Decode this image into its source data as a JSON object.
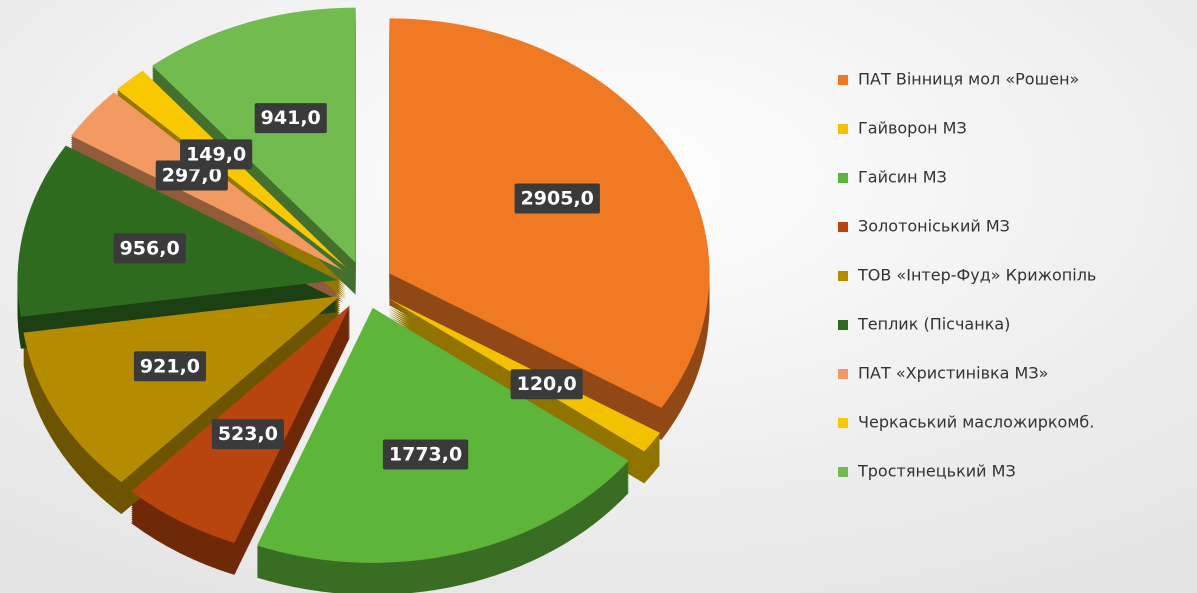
{
  "chart_data": {
    "type": "pie",
    "categories": [
      "ПАТ Вінниця мол «Рошен»",
      "Гайворон МЗ",
      "Гайсин МЗ",
      "Золотоніський МЗ",
      "ТОВ «Інтер-Фуд» Крижопіль",
      "Теплик (Пісчанка)",
      "ПАТ «Христинівка МЗ»",
      "Черкаський масложиркомб.",
      "Тростянецький МЗ"
    ],
    "values": [
      2905,
      120,
      1773,
      523,
      921,
      956,
      297,
      149,
      941
    ],
    "value_labels": [
      "2905,0",
      "120,0",
      "1773,0",
      "523,0",
      "921,0",
      "956,0",
      "297,0",
      "149,0",
      "941,0"
    ],
    "colors": [
      "#f07a24",
      "#f2c200",
      "#5db53a",
      "#b9450e",
      "#b58c00",
      "#2f6b1f",
      "#f39a62",
      "#f8c800",
      "#72bb4e"
    ]
  }
}
